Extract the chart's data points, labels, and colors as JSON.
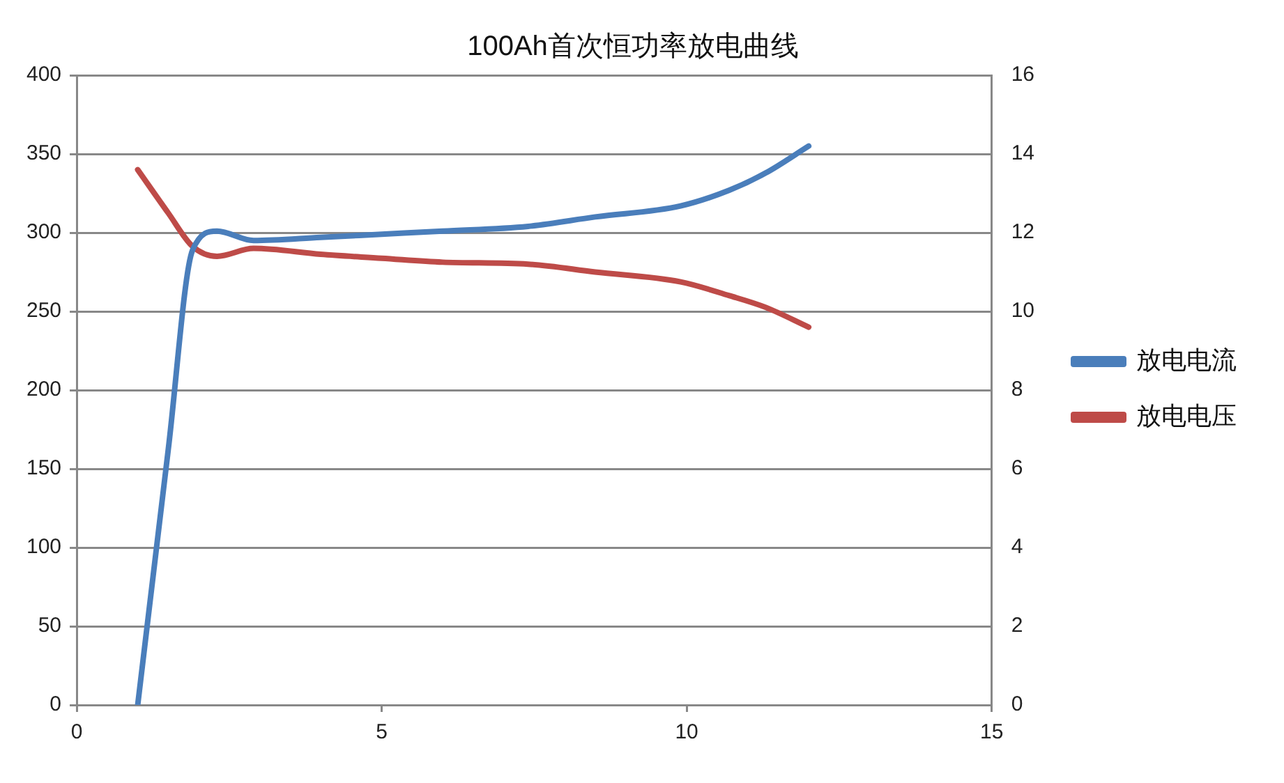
{
  "chart_data": {
    "type": "line",
    "title": "100Ah首次恒功率放电曲线",
    "x": [
      1,
      1.5,
      1.9,
      2.3,
      2.9,
      4,
      5,
      6,
      7.4,
      8.5,
      9.9,
      10.7,
      11.3,
      12
    ],
    "series": [
      {
        "name": "放电电流",
        "color": "#4a7ebb",
        "values": [
          0,
          162,
          289,
          301,
          295,
          297,
          299,
          301,
          304,
          310,
          317,
          327,
          338,
          355
        ]
      },
      {
        "name": "放电电压",
        "color": "#be4b48",
        "axis": "y2",
        "values": [
          13.6,
          12.5,
          11.65,
          11.4,
          11.6,
          11.45,
          11.35,
          11.25,
          11.2,
          11.0,
          10.75,
          10.4,
          10.1,
          9.6
        ]
      }
    ],
    "xlim": [
      0,
      15
    ],
    "xticks": [
      0,
      5,
      10,
      15
    ],
    "ylim": [
      0,
      400
    ],
    "yticks": [
      0,
      50,
      100,
      150,
      200,
      250,
      300,
      350,
      400
    ],
    "y2lim": [
      0,
      16
    ],
    "y2ticks": [
      0,
      2,
      4,
      6,
      8,
      10,
      12,
      14,
      16
    ],
    "grid": "y",
    "legend": "right",
    "marker": "none",
    "line_style": "solid"
  }
}
